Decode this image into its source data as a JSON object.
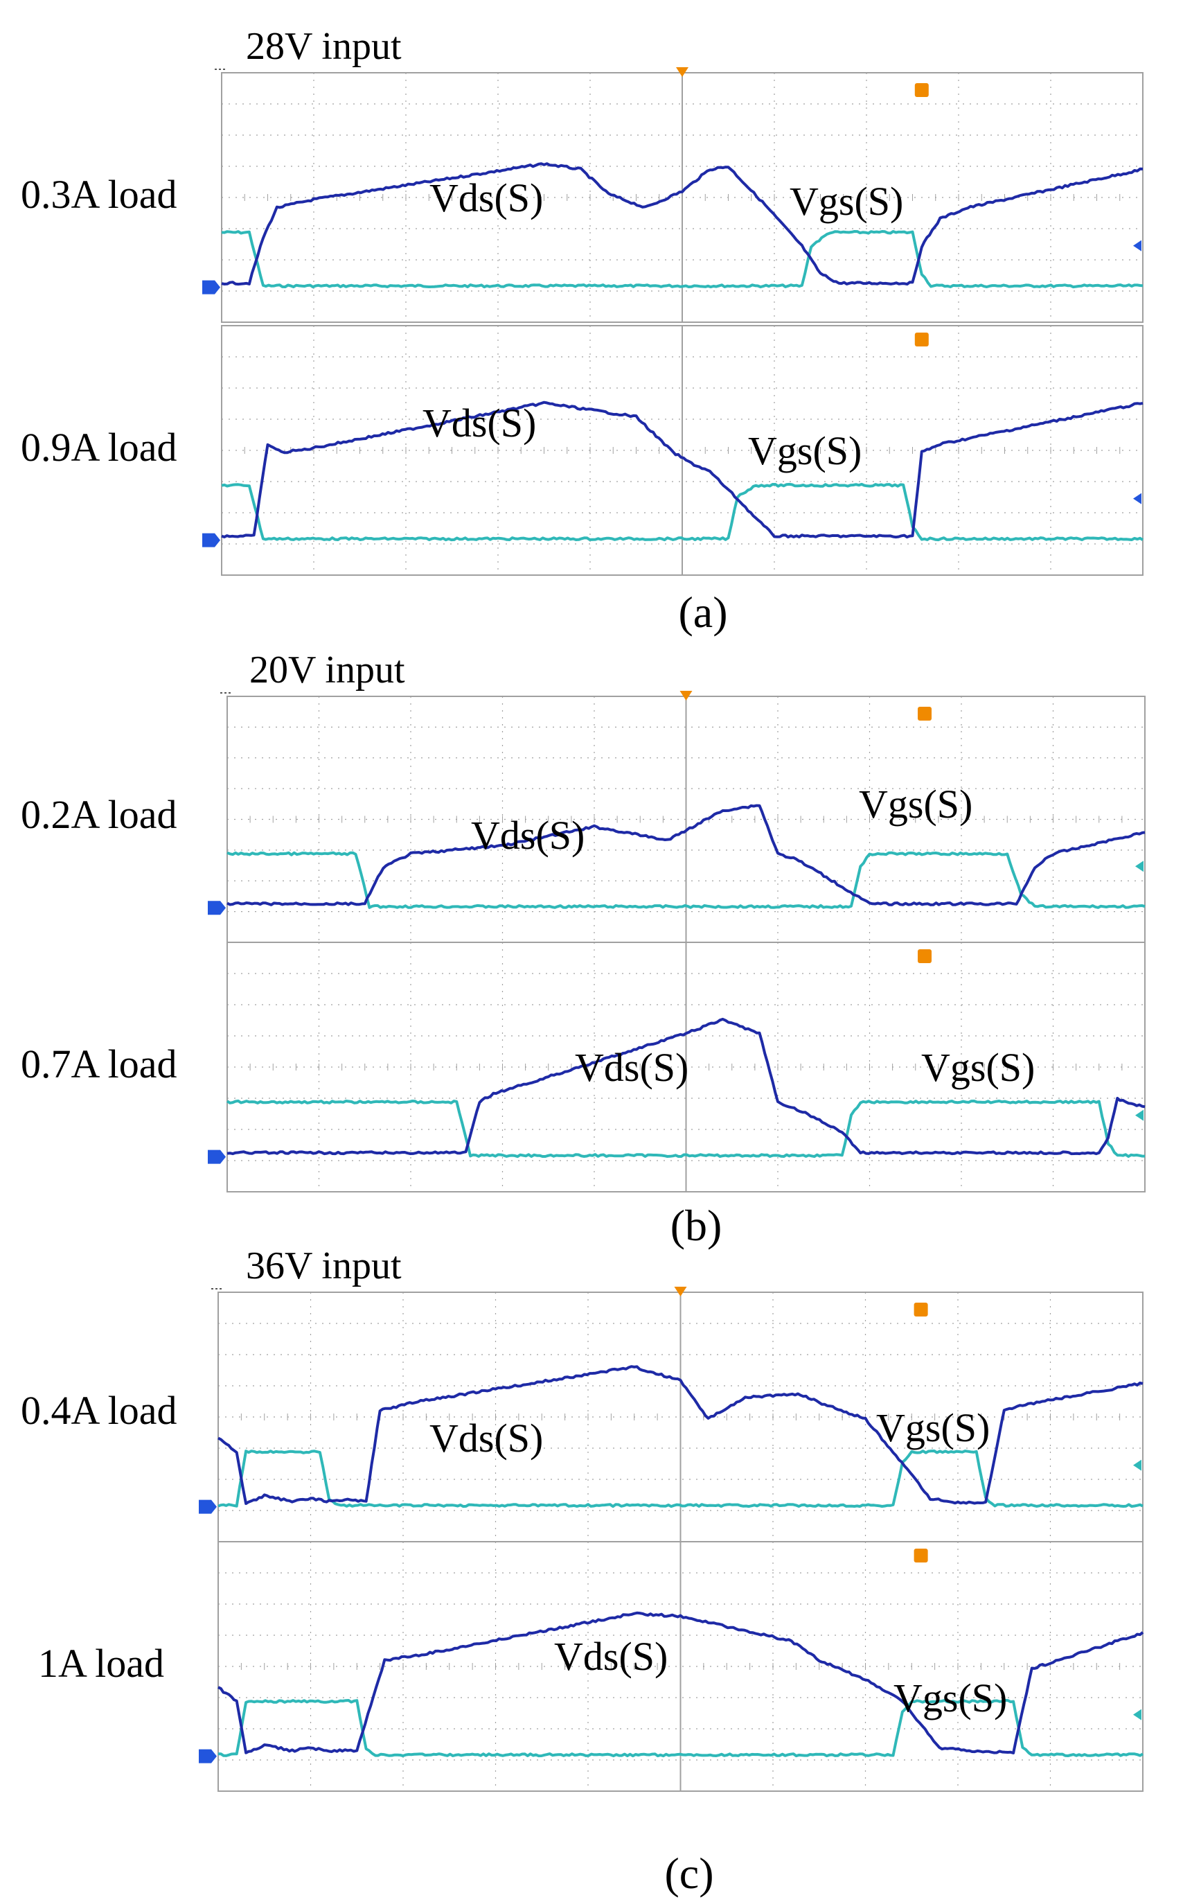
{
  "figure": {
    "type": "oscilloscope-waveforms",
    "trace_colors": {
      "vds": "#1e2aa6",
      "vgs": "#2fb8b8",
      "grid": "#a0a0a0",
      "marker": "#f08a00",
      "channel_marker": "#2255dd"
    }
  },
  "chart_data": [
    {
      "type": "line",
      "panel": "a",
      "caption": "(a)",
      "input_label": "28V input",
      "plots": [
        {
          "load_label": "0.3A load",
          "vds_label": "Vds(S)",
          "vgs_label": "Vgs(S)",
          "x_range": [
            0,
            10
          ],
          "y_range": [
            0,
            8
          ],
          "vds": {
            "x": [
              0,
              0.3,
              0.45,
              0.6,
              1.0,
              3.5,
              3.9,
              4.2,
              4.6,
              5.0,
              5.3,
              5.5,
              5.9,
              6.3,
              6.5,
              6.7,
              6.9,
              7.0,
              7.5,
              7.6,
              7.8,
              8.1,
              10
            ],
            "y": [
              0.15,
              0.15,
              1.8,
              2.9,
              3.2,
              4.5,
              4.3,
              3.4,
              2.9,
              3.5,
              4.3,
              4.4,
              3.0,
              1.5,
              0.5,
              0.15,
              0.15,
              0.15,
              0.15,
              1.5,
              2.5,
              2.9,
              4.3
            ]
          },
          "vgs": {
            "x": [
              0,
              0.3,
              0.45,
              6.3,
              6.4,
              6.6,
              7.5,
              7.6,
              7.7,
              10
            ],
            "y": [
              2.0,
              2.0,
              0.05,
              0.05,
              1.5,
              2.0,
              2.0,
              0.5,
              0.05,
              0.05
            ]
          },
          "vgs_rising_edges": [
            6.4
          ],
          "vgs_falling_edges": [
            0.4,
            7.6
          ]
        },
        {
          "load_label": "0.9A load",
          "vds_label": "Vds(S)",
          "vgs_label": "Vgs(S)",
          "x_range": [
            0,
            10
          ],
          "y_range": [
            0,
            8
          ],
          "vds": {
            "x": [
              0,
              0.35,
              0.5,
              0.65,
              0.9,
              3.5,
              4.5,
              4.9,
              5.1,
              5.3,
              5.6,
              5.8,
              6.0,
              7.5,
              7.6,
              7.8,
              10
            ],
            "y": [
              0.15,
              0.15,
              3.5,
              3.2,
              3.3,
              5.0,
              4.5,
              3.2,
              2.8,
              2.5,
              1.5,
              0.8,
              0.15,
              0.15,
              3.2,
              3.5,
              5.0
            ]
          },
          "vgs": {
            "x": [
              0,
              0.3,
              0.45,
              5.5,
              5.6,
              5.8,
              7.4,
              7.5,
              7.6,
              10
            ],
            "y": [
              2.0,
              2.0,
              0.05,
              0.05,
              1.6,
              2.0,
              2.0,
              0.5,
              0.05,
              0.05
            ]
          },
          "vgs_rising_edges": [
            5.6
          ],
          "vgs_falling_edges": [
            0.4,
            7.5
          ]
        }
      ]
    },
    {
      "type": "line",
      "panel": "b",
      "caption": "(b)",
      "input_label": "20V input",
      "plots": [
        {
          "load_label": "0.2A load",
          "vds_label": "Vds(S)",
          "vgs_label": "Vgs(S)",
          "x_range": [
            0,
            10
          ],
          "y_range": [
            0,
            8
          ],
          "vds": {
            "x": [
              0,
              1.5,
              1.7,
              2.0,
              3.0,
              4.0,
              4.8,
              5.4,
              5.8,
              6.0,
              6.2,
              6.5,
              7.0,
              8.6,
              8.8,
              9.0,
              10
            ],
            "y": [
              0.15,
              0.15,
              1.5,
              2.0,
              2.3,
              3.0,
              2.5,
              3.6,
              3.8,
              2.0,
              1.8,
              1.2,
              0.15,
              0.15,
              1.5,
              2.0,
              2.8
            ]
          },
          "vgs": {
            "x": [
              0,
              1.4,
              1.55,
              6.8,
              6.9,
              7.0,
              8.5,
              8.65,
              8.8,
              10
            ],
            "y": [
              2.0,
              2.0,
              0.05,
              0.05,
              1.5,
              2.0,
              2.0,
              0.5,
              0.05,
              0.05
            ]
          },
          "vgs_rising_edges": [
            6.9
          ],
          "vgs_falling_edges": [
            1.5,
            8.6
          ]
        },
        {
          "load_label": "0.7A load",
          "vds_label": "Vds(S)",
          "vgs_label": "Vgs(S)",
          "x_range": [
            0,
            10
          ],
          "y_range": [
            0,
            8
          ],
          "vds": {
            "x": [
              0,
              2.6,
              2.75,
              2.9,
              3.2,
              5.0,
              5.4,
              5.8,
              6.0,
              6.3,
              6.7,
              6.9,
              9.5,
              9.6,
              9.7,
              10
            ],
            "y": [
              0.15,
              0.15,
              2.0,
              2.3,
              2.6,
              4.5,
              5.0,
              4.5,
              2.0,
              1.6,
              0.9,
              0.15,
              0.15,
              0.7,
              2.1,
              1.8
            ]
          },
          "vgs": {
            "x": [
              0,
              2.5,
              2.65,
              6.7,
              6.8,
              6.9,
              9.5,
              9.6,
              9.7,
              10
            ],
            "y": [
              2.0,
              2.0,
              0.05,
              0.05,
              1.5,
              2.0,
              2.0,
              0.5,
              0.05,
              0.05
            ]
          },
          "vgs_rising_edges": [
            6.8
          ],
          "vgs_falling_edges": [
            2.6,
            9.6
          ]
        }
      ]
    },
    {
      "type": "line",
      "panel": "c",
      "caption": "(c)",
      "input_label": "36V input",
      "plots": [
        {
          "load_label": "0.4A load",
          "vds_label": "Vds(S)",
          "vgs_label": "Vgs(S)",
          "x_range": [
            0,
            10
          ],
          "y_range": [
            0,
            8
          ],
          "vds": {
            "x": [
              0,
              0.2,
              0.3,
              0.5,
              0.8,
              1.0,
              1.2,
              1.4,
              1.6,
              1.75,
              2.1,
              4.5,
              5.0,
              5.3,
              5.7,
              6.3,
              6.5,
              7.0,
              7.3,
              7.7,
              8.0,
              8.3,
              8.5,
              8.7,
              10
            ],
            "y": [
              2.5,
              2.0,
              0.1,
              0.4,
              0.2,
              0.3,
              0.2,
              0.25,
              0.2,
              3.5,
              3.8,
              5.1,
              4.6,
              3.2,
              4.0,
              4.1,
              3.8,
              3.2,
              2.0,
              0.3,
              0.15,
              0.15,
              3.5,
              3.7,
              4.5
            ]
          },
          "vgs": {
            "x": [
              0,
              0.2,
              0.3,
              1.1,
              1.2,
              1.3,
              7.3,
              7.4,
              7.5,
              8.2,
              8.3,
              8.4,
              10
            ],
            "y": [
              0.05,
              0.05,
              2.0,
              2.0,
              0.3,
              0.05,
              0.05,
              1.6,
              2.0,
              2.0,
              0.3,
              0.05,
              0.05
            ]
          },
          "vgs_rising_edges": [
            0.25,
            7.35
          ],
          "vgs_falling_edges": [
            1.2,
            8.3
          ]
        },
        {
          "load_label": "1A load",
          "vds_label": "Vds(S)",
          "vgs_label": "Vgs(S)",
          "x_range": [
            0,
            10
          ],
          "y_range": [
            0,
            8
          ],
          "vds": {
            "x": [
              0,
              0.2,
              0.3,
              0.5,
              0.8,
              1.0,
              1.2,
              1.4,
              1.5,
              1.8,
              2.2,
              4.5,
              5.0,
              6.2,
              6.5,
              7.0,
              7.4,
              7.8,
              8.3,
              8.6,
              8.8,
              9.0,
              10
            ],
            "y": [
              2.5,
              2.0,
              0.1,
              0.4,
              0.2,
              0.3,
              0.2,
              0.2,
              0.2,
              3.5,
              3.7,
              5.2,
              5.1,
              4.2,
              3.5,
              2.8,
              2.0,
              0.3,
              0.15,
              0.15,
              3.2,
              3.4,
              4.5
            ]
          },
          "vgs": {
            "x": [
              0,
              0.2,
              0.3,
              1.5,
              1.6,
              1.7,
              7.3,
              7.4,
              7.5,
              8.6,
              8.7,
              8.8,
              10
            ],
            "y": [
              0.05,
              0.05,
              2.0,
              2.0,
              0.3,
              0.05,
              0.05,
              1.6,
              2.0,
              2.0,
              0.3,
              0.05,
              0.05
            ]
          },
          "vgs_rising_edges": [
            0.25,
            7.35
          ],
          "vgs_falling_edges": [
            1.6,
            8.7
          ]
        }
      ]
    }
  ]
}
